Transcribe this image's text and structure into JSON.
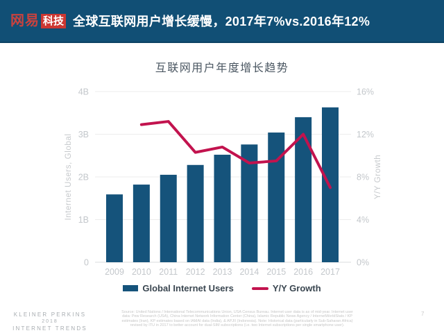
{
  "header": {
    "logo_netease": "网易",
    "logo_tech": "科技",
    "title": "全球互联网用户增长缓慢，2017年7%vs.2016年12%"
  },
  "colors": {
    "header_bg": "#114f75",
    "header_border": "#0c4263",
    "logo_red": "#cc3732",
    "bar_blue": "#15537b",
    "line_crimson": "#c2134e",
    "axis_gray": "#c3c7cb",
    "grid_gray": "#ececec"
  },
  "chart_data": {
    "type": "bar",
    "title": "互联网用户年度增长趋势",
    "categories": [
      "2009",
      "2010",
      "2011",
      "2012",
      "2013",
      "2014",
      "2015",
      "2016",
      "2017"
    ],
    "series": [
      {
        "name": "Global Internet Users",
        "type": "bar",
        "axis": "left",
        "color": "#15537b",
        "values": [
          1.59,
          1.82,
          2.05,
          2.28,
          2.52,
          2.76,
          3.04,
          3.4,
          3.63
        ]
      },
      {
        "name": "Y/Y Growth",
        "type": "line",
        "axis": "right",
        "color": "#c2134e",
        "values": [
          null,
          12.9,
          13.2,
          10.3,
          10.8,
          9.3,
          9.5,
          12,
          7
        ]
      }
    ],
    "left_axis": {
      "label": "Internet Users, Global",
      "ticks": [
        "0",
        "1B",
        "2B",
        "3B",
        "4B"
      ],
      "range": [
        0,
        4
      ]
    },
    "right_axis": {
      "label": "Y/Y Growth",
      "ticks": [
        "0%",
        "4%",
        "8%",
        "12%",
        "16%"
      ],
      "range": [
        0,
        16
      ]
    },
    "grid": true,
    "legend_position": "bottom"
  },
  "legend": {
    "bar_label": "Global Internet Users",
    "line_label": "Y/Y Growth"
  },
  "footer": {
    "brand_lines": [
      "KLEINER PERKINS",
      "2018",
      "INTERNET TRENDS"
    ],
    "source_lines": [
      "Source: United Nations / International Telecommunications Union, USA Census Bureau. Internet user data is as of mid-year. Internet user",
      "data: Pew Research (USA), China Internet Network Information Center (China), Islamic Republic News Agency / InternetWorldStats / KP",
      "estimates (Iran), KP estimates based on IAMAI data (India), & APJII (Indonesia). Note: Historical data (particularly in Sub-Saharan Africa)",
      "revised by ITU in 2017 to better account for dual-SIM subscriptions (i.e. two Internet subscriptions per single smartphone user)."
    ],
    "page_number": "7"
  }
}
